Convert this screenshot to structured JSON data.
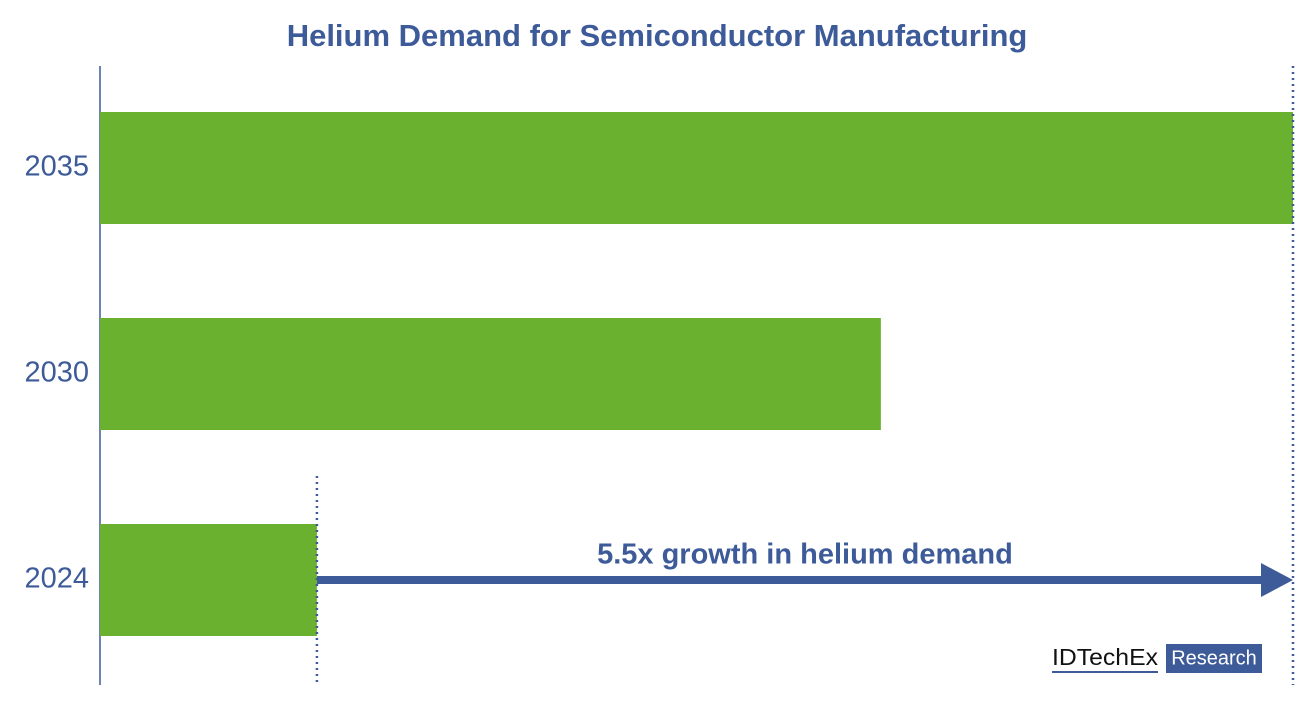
{
  "chart_data": {
    "type": "bar",
    "orientation": "horizontal",
    "title": "Helium Demand for Semiconductor Manufacturing",
    "categories": [
      "2024",
      "2030",
      "2035"
    ],
    "values": [
      1,
      3.6,
      5.5
    ],
    "color": "#6ab130",
    "xlim": [
      0,
      5.5
    ],
    "annotation": "5.5x growth in helium demand",
    "logo": {
      "brand": "IDTechEx",
      "tag": "Research"
    }
  }
}
